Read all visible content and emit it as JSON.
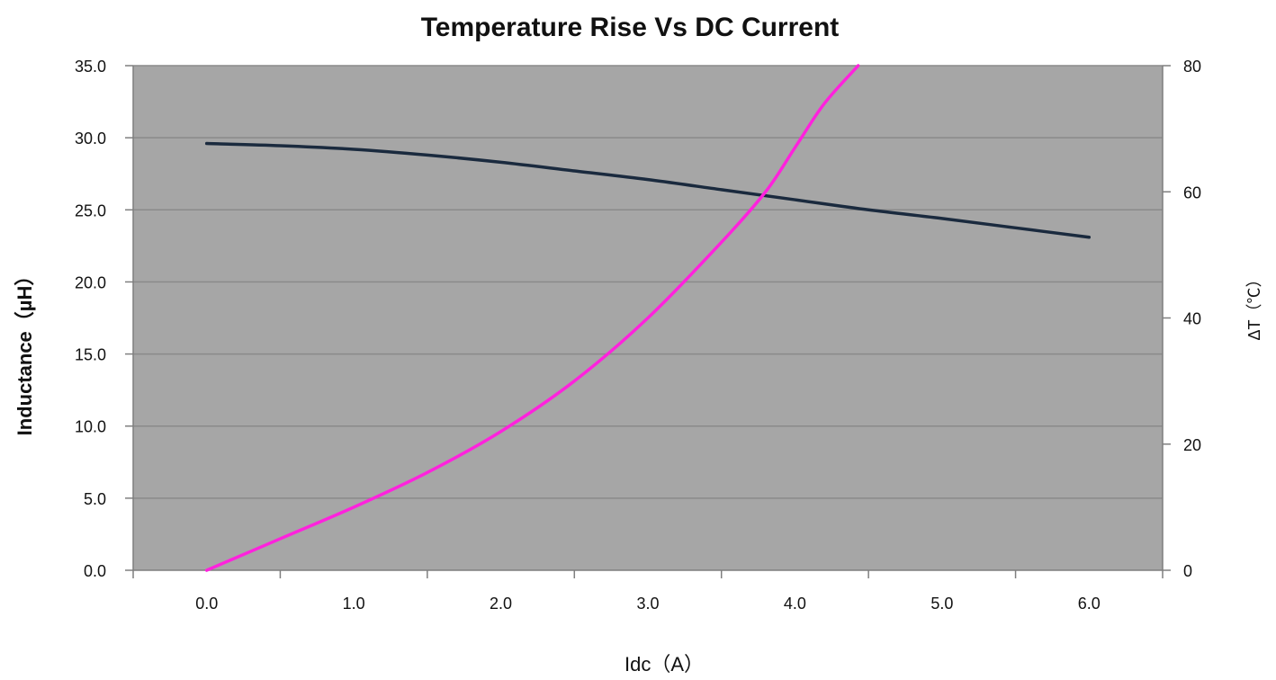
{
  "chart_data": {
    "type": "line",
    "title": "Temperature Rise Vs DC Current",
    "xlabel": "Idc（A）",
    "ylabel": "Inductance（µH）",
    "y2label": "ΔT（℃）",
    "x_ticks": [
      "0.0",
      "1.0",
      "2.0",
      "3.0",
      "4.0",
      "5.0",
      "6.0"
    ],
    "y_ticks": [
      "0.0",
      "5.0",
      "10.0",
      "15.0",
      "20.0",
      "25.0",
      "30.0",
      "35.0"
    ],
    "y2_ticks": [
      "0",
      "20",
      "40",
      "60",
      "80"
    ],
    "xlim": [
      -0.5,
      6.5
    ],
    "ylim": [
      0,
      35
    ],
    "y2lim": [
      0,
      80
    ],
    "grid": true,
    "legend": "none",
    "series": [
      {
        "axis": "left",
        "x": [
          0.0,
          0.5,
          1.0,
          1.5,
          2.0,
          2.5,
          3.0,
          3.5,
          4.0,
          4.5,
          5.0,
          5.5,
          6.0
        ],
        "y": [
          29.6,
          29.45,
          29.2,
          28.8,
          28.3,
          27.7,
          27.1,
          26.4,
          25.7,
          25.0,
          24.4,
          23.75,
          23.1
        ]
      },
      {
        "axis": "right",
        "x": [
          0.0,
          0.5,
          1.0,
          1.5,
          2.0,
          2.5,
          3.0,
          3.5,
          3.8,
          4.0,
          4.2,
          4.43
        ],
        "y": [
          0,
          5,
          10,
          15.5,
          22,
          30,
          40,
          52,
          60,
          67,
          74,
          80
        ]
      }
    ],
    "colors": {
      "plot_bg": "#a6a6a6",
      "grid": "#8a8a8a",
      "axis": "#7f7f7f",
      "inductance_line": "#1a2a3e",
      "temperature_line": "#ff22dd"
    }
  }
}
